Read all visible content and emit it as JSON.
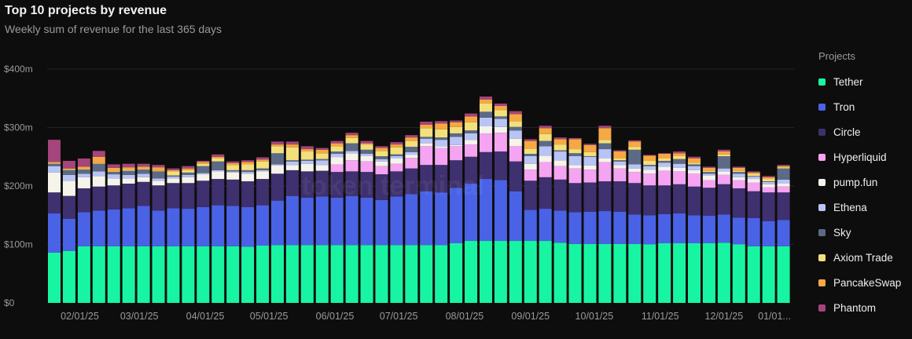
{
  "header": {
    "title": "Top 10 projects by revenue",
    "subtitle": "Weekly sum of revenue for the last 365 days"
  },
  "watermark": "token terminal",
  "background_color": "#0e0d0d",
  "chart_data": {
    "type": "bar",
    "stacked": true,
    "title": "Top 10 projects by revenue",
    "subtitle": "Weekly sum of revenue for the last 365 days",
    "xlabel": "",
    "ylabel": "",
    "ylim": [
      0,
      400
    ],
    "y_unit": "$m",
    "y_ticks": [
      0,
      100,
      200,
      300,
      400
    ],
    "y_tick_labels": [
      "$0",
      "$100m",
      "$200m",
      "$300m",
      "$400m"
    ],
    "x_ticks": [
      "2025-02-01",
      "2025-03-01",
      "2025-04-01",
      "2025-05-01",
      "2025-06-01",
      "2025-07-01",
      "2025-08-01",
      "2025-09-01",
      "2025-10-01",
      "2025-11-01",
      "2025-12-01",
      "2026-01-01"
    ],
    "x_tick_labels": [
      "02/01/25",
      "03/01/25",
      "04/01/25",
      "05/01/25",
      "06/01/25",
      "07/01/25",
      "08/01/25",
      "09/01/25",
      "10/01/25",
      "11/01/25",
      "12/01/25",
      "01/01..."
    ],
    "grid": true,
    "legend_title": "Projects",
    "legend_placement": "right",
    "x": [
      "2025-01-20",
      "2025-01-27",
      "2025-02-03",
      "2025-02-10",
      "2025-02-17",
      "2025-02-24",
      "2025-03-03",
      "2025-03-10",
      "2025-03-17",
      "2025-03-24",
      "2025-03-31",
      "2025-04-07",
      "2025-04-14",
      "2025-04-21",
      "2025-04-28",
      "2025-05-05",
      "2025-05-12",
      "2025-05-19",
      "2025-05-26",
      "2025-06-02",
      "2025-06-09",
      "2025-06-16",
      "2025-06-23",
      "2025-06-30",
      "2025-07-07",
      "2025-07-14",
      "2025-07-21",
      "2025-07-28",
      "2025-08-04",
      "2025-08-11",
      "2025-08-18",
      "2025-08-25",
      "2025-09-01",
      "2025-09-08",
      "2025-09-15",
      "2025-09-22",
      "2025-09-29",
      "2025-10-06",
      "2025-10-13",
      "2025-10-20",
      "2025-10-27",
      "2025-11-03",
      "2025-11-10",
      "2025-11-17",
      "2025-11-24",
      "2025-12-01",
      "2025-12-08",
      "2025-12-15",
      "2025-12-22",
      "2025-12-29"
    ],
    "series": [
      {
        "name": "Tether",
        "color": "#18f5a2",
        "values": [
          86,
          89,
          97,
          97,
          97,
          97,
          97,
          97,
          97,
          97,
          97,
          97,
          97,
          96,
          98,
          99,
          99,
          99,
          99,
          99,
          99,
          99,
          99,
          99,
          99,
          99,
          99,
          102,
          106,
          106,
          106,
          106,
          106,
          106,
          103,
          101,
          101,
          101,
          101,
          101,
          100,
          102,
          102,
          102,
          102,
          103,
          100,
          97,
          97,
          97
        ]
      },
      {
        "name": "Tron",
        "color": "#4a62e6",
        "values": [
          67,
          55,
          58,
          61,
          63,
          65,
          69,
          61,
          65,
          64,
          67,
          70,
          69,
          68,
          69,
          76,
          84,
          81,
          83,
          81,
          84,
          81,
          77,
          83,
          87,
          92,
          90,
          95,
          98,
          106,
          104,
          85,
          53,
          55,
          55,
          54,
          55,
          56,
          55,
          50,
          50,
          50,
          51,
          48,
          47,
          48,
          46,
          48,
          43,
          45
        ]
      },
      {
        "name": "Circle",
        "color": "#3f306f",
        "values": [
          36,
          39,
          41,
          41,
          41,
          42,
          41,
          43,
          43,
          44,
          45,
          45,
          45,
          44,
          45,
          46,
          44,
          45,
          44,
          44,
          42,
          44,
          44,
          43,
          44,
          45,
          47,
          47,
          46,
          46,
          49,
          51,
          50,
          54,
          53,
          50,
          50,
          51,
          52,
          54,
          51,
          49,
          50,
          49,
          48,
          52,
          50,
          46,
          49,
          47
        ]
      },
      {
        "name": "Hyperliquid",
        "color": "#f5a4f2",
        "values": [
          0,
          0,
          0,
          0,
          0,
          0,
          0,
          0,
          0,
          0,
          0,
          0,
          0,
          0,
          0,
          0,
          0,
          0,
          0,
          13,
          19,
          18,
          14,
          13,
          18,
          32,
          29,
          24,
          21,
          32,
          32,
          26,
          19,
          26,
          23,
          25,
          22,
          33,
          22,
          19,
          20,
          25,
          22,
          22,
          13,
          16,
          14,
          15,
          9,
          10
        ]
      },
      {
        "name": "pump.fun",
        "color": "#f6f3ea",
        "values": [
          34,
          26,
          19,
          18,
          12,
          9,
          8,
          8,
          8,
          10,
          11,
          13,
          12,
          13,
          13,
          14,
          9,
          13,
          10,
          12,
          12,
          9,
          8,
          9,
          5,
          5,
          3,
          2,
          8,
          12,
          10,
          13,
          10,
          11,
          10,
          6,
          7,
          6,
          6,
          6,
          7,
          7,
          6,
          6,
          8,
          6,
          5,
          6,
          5,
          5
        ]
      },
      {
        "name": "Ethena",
        "color": "#b9c4f6",
        "values": [
          11,
          10,
          6,
          8,
          7,
          6,
          6,
          4,
          3,
          4,
          2,
          2,
          2,
          3,
          2,
          2,
          6,
          5,
          8,
          6,
          4,
          4,
          4,
          4,
          5,
          8,
          11,
          14,
          11,
          15,
          14,
          14,
          13,
          16,
          15,
          15,
          15,
          16,
          6,
          7,
          6,
          7,
          7,
          7,
          3,
          5,
          6,
          4,
          4,
          7
        ]
      },
      {
        "name": "Sky",
        "color": "#5c6a86",
        "values": [
          4,
          8,
          7,
          13,
          4,
          7,
          7,
          12,
          2,
          4,
          12,
          15,
          2,
          3,
          3,
          19,
          2,
          2,
          2,
          4,
          13,
          7,
          5,
          3,
          9,
          3,
          4,
          6,
          5,
          10,
          4,
          6,
          4,
          9,
          2,
          5,
          1,
          10,
          2,
          25,
          2,
          3,
          8,
          3,
          3,
          21,
          3,
          1,
          1,
          19
        ]
      },
      {
        "name": "Axiom Trade",
        "color": "#f2e07c",
        "values": [
          1,
          1,
          1,
          1,
          1,
          2,
          1,
          1,
          7,
          4,
          4,
          5,
          9,
          10,
          12,
          12,
          22,
          14,
          10,
          9,
          9,
          9,
          9,
          12,
          10,
          15,
          14,
          11,
          14,
          14,
          11,
          10,
          9,
          12,
          10,
          7,
          7,
          6,
          3,
          5,
          7,
          4,
          5,
          3,
          2,
          3,
          2,
          4,
          4,
          2
        ]
      },
      {
        "name": "PancakeSwap",
        "color": "#f6a843",
        "values": [
          2,
          2,
          4,
          11,
          6,
          4,
          4,
          6,
          2,
          3,
          3,
          3,
          3,
          4,
          3,
          3,
          5,
          4,
          6,
          5,
          5,
          2,
          5,
          5,
          6,
          6,
          10,
          8,
          10,
          7,
          7,
          12,
          13,
          10,
          9,
          17,
          12,
          20,
          12,
          9,
          9,
          8,
          5,
          7,
          5,
          5,
          5,
          2,
          3,
          2
        ]
      },
      {
        "name": "Phantom",
        "color": "#a4457b",
        "values": [
          38,
          13,
          14,
          10,
          6,
          6,
          5,
          4,
          3,
          4,
          2,
          4,
          3,
          3,
          4,
          5,
          5,
          5,
          3,
          4,
          4,
          4,
          3,
          4,
          4,
          5,
          4,
          3,
          5,
          5,
          4,
          5,
          3,
          4,
          3,
          2,
          2,
          4,
          2,
          2,
          1,
          1,
          3,
          3,
          2,
          3,
          2,
          2,
          2,
          2
        ]
      }
    ]
  }
}
